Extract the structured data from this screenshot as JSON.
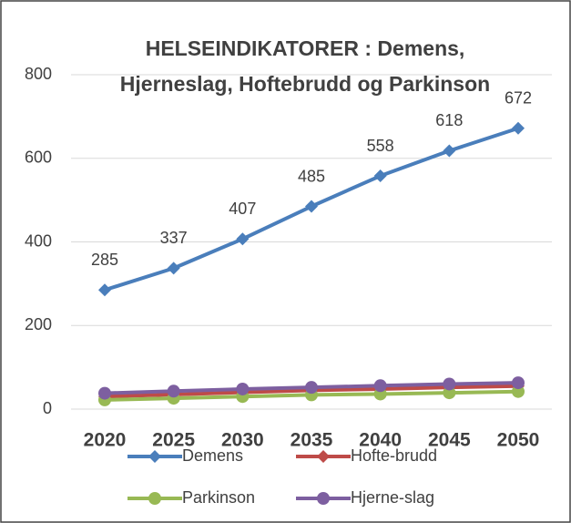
{
  "chart_data": {
    "type": "line",
    "title": "HELSEINDIKATORER : Demens, Hjerneslag, Hoftebrudd og Parkinson",
    "categories": [
      "2020",
      "2025",
      "2030",
      "2035",
      "2040",
      "2045",
      "2050"
    ],
    "series": [
      {
        "name": "Demens",
        "color": "#4a7ebb",
        "marker": "diamond",
        "data_labels": true,
        "values": [
          285,
          337,
          407,
          485,
          558,
          618,
          672
        ]
      },
      {
        "name": "Hofte-brudd",
        "color": "#be4b48",
        "marker": "diamond",
        "data_labels": false,
        "values": [
          30,
          35,
          40,
          45,
          48,
          52,
          55
        ]
      },
      {
        "name": "Parkinson",
        "color": "#98b954",
        "marker": "circle",
        "data_labels": false,
        "values": [
          22,
          26,
          30,
          34,
          36,
          39,
          42
        ]
      },
      {
        "name": "Hjerne-slag",
        "color": "#7d5fa0",
        "marker": "circle",
        "data_labels": false,
        "values": [
          38,
          43,
          48,
          52,
          56,
          60,
          63
        ]
      }
    ],
    "ylim": [
      0,
      800
    ],
    "yticks": [
      0,
      200,
      400,
      600,
      800
    ],
    "grid": true,
    "legend": "bottom"
  }
}
